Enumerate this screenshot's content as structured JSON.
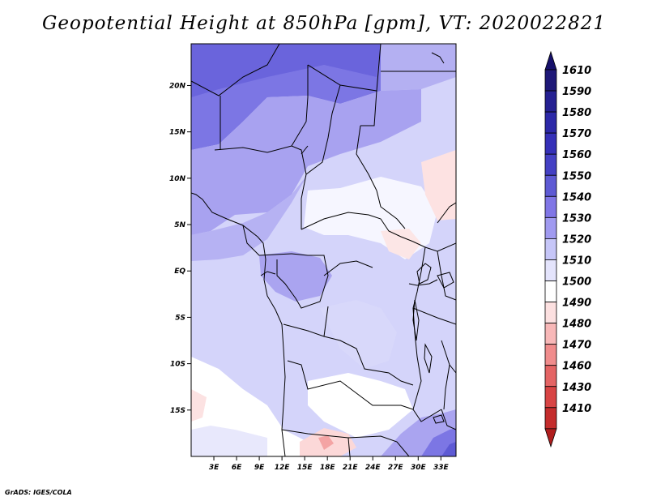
{
  "title": "Geopotential Height at 850hPa [gpm], VT: 2020022821",
  "footer": "GrADS: IGES/COLA",
  "map": {
    "lon_range": [
      0,
      35
    ],
    "lat_range": [
      -20,
      24.5
    ],
    "x_ticks": [
      {
        "lon": 3,
        "label": "3E"
      },
      {
        "lon": 6,
        "label": "6E"
      },
      {
        "lon": 9,
        "label": "9E"
      },
      {
        "lon": 12,
        "label": "12E"
      },
      {
        "lon": 15,
        "label": "15E"
      },
      {
        "lon": 18,
        "label": "18E"
      },
      {
        "lon": 21,
        "label": "21E"
      },
      {
        "lon": 24,
        "label": "24E"
      },
      {
        "lon": 27,
        "label": "27E"
      },
      {
        "lon": 30,
        "label": "30E"
      },
      {
        "lon": 33,
        "label": "33E"
      }
    ],
    "y_ticks": [
      {
        "lat": 20,
        "label": "20N"
      },
      {
        "lat": 15,
        "label": "15N"
      },
      {
        "lat": 10,
        "label": "10N"
      },
      {
        "lat": 5,
        "label": "5N"
      },
      {
        "lat": 0,
        "label": "EQ"
      },
      {
        "lat": -5,
        "label": "5S"
      },
      {
        "lat": -10,
        "label": "10S"
      },
      {
        "lat": -15,
        "label": "15S"
      }
    ]
  },
  "colorbar": {
    "levels": [
      {
        "label": "1610",
        "color": "#1e1878"
      },
      {
        "label": "1590",
        "color": "#252092"
      },
      {
        "label": "1580",
        "color": "#2c28a8"
      },
      {
        "label": "1570",
        "color": "#3530b8"
      },
      {
        "label": "1560",
        "color": "#4440c4"
      },
      {
        "label": "1550",
        "color": "#5e5ad4"
      },
      {
        "label": "1540",
        "color": "#8076e6"
      },
      {
        "label": "1530",
        "color": "#a09af0"
      },
      {
        "label": "1520",
        "color": "#c6c6f8"
      },
      {
        "label": "1510",
        "color": "#e4e4fc"
      },
      {
        "label": "1500",
        "color": "#ffffff"
      },
      {
        "label": "1490",
        "color": "#fce0e0"
      },
      {
        "label": "1480",
        "color": "#f8b8b8"
      },
      {
        "label": "1470",
        "color": "#f08c8c"
      },
      {
        "label": "1460",
        "color": "#e46464"
      },
      {
        "label": "1430",
        "color": "#d84444"
      },
      {
        "label": "1410",
        "color": "#c42c2c"
      }
    ],
    "top_cap_color": "#16106a",
    "bottom_cap_color": "#b01e1e"
  }
}
